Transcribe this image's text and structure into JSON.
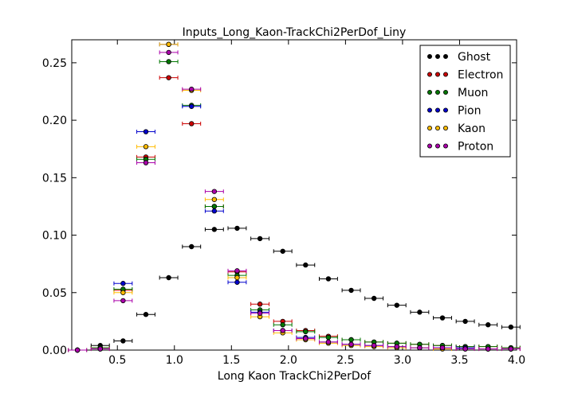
{
  "chart_data": {
    "type": "scatter",
    "title": "Inputs_Long_Kaon-TrackChi2PerDof_Liny",
    "xlabel": "Long Kaon TrackChi2PerDof",
    "ylabel": "",
    "xlim": [
      0.1,
      4.0
    ],
    "ylim": [
      0.0,
      0.27
    ],
    "xticks": [
      "0.5",
      "1.0",
      "1.5",
      "2.0",
      "2.5",
      "3.0",
      "3.5",
      "4.0"
    ],
    "yticks": [
      "0.00",
      "0.05",
      "0.10",
      "0.15",
      "0.20",
      "0.25"
    ],
    "grid": false,
    "legend_position": "top-right",
    "bin_half_width": 0.08,
    "x": [
      0.15,
      0.35,
      0.55,
      0.75,
      0.95,
      1.15,
      1.35,
      1.55,
      1.75,
      1.95,
      2.15,
      2.35,
      2.55,
      2.75,
      2.95,
      3.15,
      3.35,
      3.55,
      3.75,
      3.95
    ],
    "series": [
      {
        "name": "Ghost",
        "color": "#000000",
        "values": [
          0.0,
          0.004,
          0.008,
          0.031,
          0.063,
          0.09,
          0.105,
          0.106,
          0.097,
          0.086,
          0.074,
          0.062,
          0.052,
          0.045,
          0.039,
          0.033,
          0.028,
          0.025,
          0.022,
          0.02
        ]
      },
      {
        "name": "Electron",
        "color": "#cc0000",
        "values": [
          0.0,
          0.002,
          0.052,
          0.168,
          0.237,
          0.197,
          0.125,
          0.068,
          0.04,
          0.025,
          0.017,
          0.012,
          0.009,
          0.007,
          0.006,
          0.005,
          0.004,
          0.003,
          0.003,
          0.002
        ]
      },
      {
        "name": "Muon",
        "color": "#007700",
        "values": [
          0.0,
          0.002,
          0.053,
          0.166,
          0.251,
          0.213,
          0.125,
          0.065,
          0.035,
          0.022,
          0.016,
          0.011,
          0.009,
          0.007,
          0.006,
          0.005,
          0.004,
          0.003,
          0.003,
          0.002
        ]
      },
      {
        "name": "Pion",
        "color": "#0000cc",
        "values": [
          0.0,
          0.001,
          0.058,
          0.19,
          0.266,
          0.212,
          0.121,
          0.059,
          0.033,
          0.017,
          0.011,
          0.007,
          0.005,
          0.004,
          0.003,
          0.002,
          0.002,
          0.002,
          0.001,
          0.001
        ]
      },
      {
        "name": "Kaon",
        "color": "#ffbb00",
        "values": [
          0.0,
          0.001,
          0.05,
          0.177,
          0.266,
          0.226,
          0.131,
          0.063,
          0.029,
          0.015,
          0.009,
          0.006,
          0.004,
          0.003,
          0.002,
          0.002,
          0.001,
          0.001,
          0.001,
          0.001
        ]
      },
      {
        "name": "Proton",
        "color": "#aa00aa",
        "values": [
          0.0,
          0.001,
          0.043,
          0.163,
          0.259,
          0.227,
          0.138,
          0.069,
          0.032,
          0.017,
          0.01,
          0.007,
          0.005,
          0.004,
          0.003,
          0.002,
          0.002,
          0.001,
          0.001,
          0.001
        ]
      }
    ]
  }
}
